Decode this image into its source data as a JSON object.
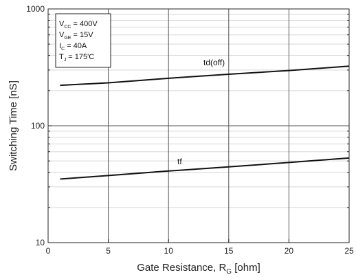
{
  "chart_data": {
    "type": "line",
    "title": "",
    "xlabel": {
      "main": "Gate Resistance, R",
      "sub": "G",
      "unit": " [ohm]"
    },
    "ylabel": "Switching Time [nS]",
    "xlim": [
      0,
      25
    ],
    "ylim": [
      10,
      1000
    ],
    "yscale": "log",
    "grid": true,
    "xticks": [
      0,
      5,
      10,
      15,
      20,
      25
    ],
    "yticks": [
      10,
      100,
      1000
    ],
    "xtick_labels": [
      "0",
      "5",
      "10",
      "15",
      "20",
      "25"
    ],
    "ytick_labels": [
      "10",
      "100",
      "1000"
    ],
    "annotation_box": [
      {
        "base": "V",
        "sub": "CC",
        "text": " = 400V"
      },
      {
        "base": "V",
        "sub": "GE",
        "text": " = 15V"
      },
      {
        "base": "I",
        "sub": "C",
        "text": " = 40A"
      },
      {
        "base": "T",
        "sub": "J",
        "text": " = 175'C"
      }
    ],
    "series": [
      {
        "name": "td(off)",
        "x": [
          1,
          5,
          10,
          15,
          20,
          25
        ],
        "y": [
          222,
          233,
          255,
          276,
          297,
          324
        ]
      },
      {
        "name": "tf",
        "x": [
          1,
          5,
          10,
          15,
          20,
          25
        ],
        "y": [
          35,
          37.5,
          41,
          44.5,
          48.5,
          53
        ]
      }
    ]
  }
}
